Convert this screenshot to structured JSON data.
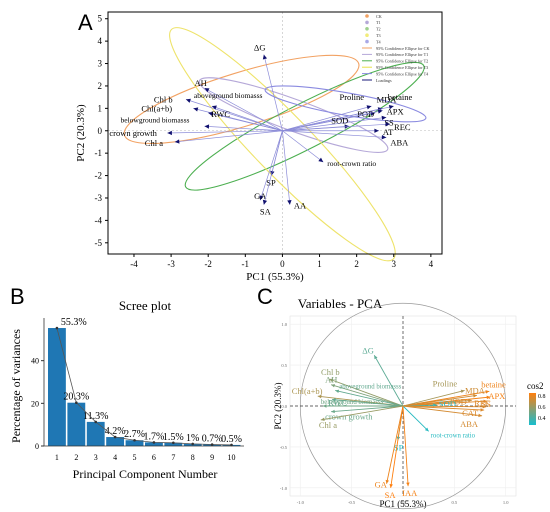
{
  "panels": [
    {
      "letter": "A"
    },
    {
      "letter": "B"
    },
    {
      "letter": "C"
    }
  ],
  "chart_data": [
    {
      "panel": "A",
      "type": "scatter",
      "subtype": "pca-biplot",
      "title": "",
      "xlabel": "PC1 (55.3%)",
      "ylabel": "PC2 (20.3%)",
      "xlim": [
        -4.7,
        4.3
      ],
      "ylim": [
        -5.5,
        5.3
      ],
      "xticks": [
        -4,
        -3,
        -2,
        -1,
        0,
        1,
        2,
        3,
        4
      ],
      "yticks": [
        -5,
        -4,
        -3,
        -2,
        -1,
        0,
        1,
        2,
        3,
        4,
        5
      ],
      "grid": false,
      "legend_position": "top-right",
      "legend": [
        {
          "label": "CK",
          "color": "#f2a263"
        },
        {
          "label": "T1",
          "color": "#b5a8d8"
        },
        {
          "label": "T2",
          "color": "#9fd08f"
        },
        {
          "label": "T3",
          "color": "#f2ec7a"
        },
        {
          "label": "T4",
          "color": "#a9a9e6"
        },
        {
          "label": "95% Confidence Ellipse for CK",
          "color": "#f2a263"
        },
        {
          "label": "95% Confidence Ellipse for T1",
          "color": "#b5a8d8"
        },
        {
          "label": "95% Confidence Ellipse for T2",
          "color": "#4caf50"
        },
        {
          "label": "95% Confidence Ellipse for T3",
          "color": "#e8e04a"
        },
        {
          "label": "95% Confidence Ellipse for T4",
          "color": "#8a8ae0"
        },
        {
          "label": "Loadings",
          "color": "#1a1a7a"
        }
      ],
      "ellipses": [
        {
          "group": "CK",
          "cx": -1.1,
          "cy": 1.4,
          "rx": 3.3,
          "ry": 1.2,
          "angle": -17,
          "color": "#f2a263"
        },
        {
          "group": "T1",
          "cx": 0.3,
          "cy": 0.7,
          "rx": 2.7,
          "ry": 0.7,
          "angle": 20,
          "color": "#b5a8d8"
        },
        {
          "group": "T2",
          "cx": 0.6,
          "cy": 0.2,
          "rx": 3.6,
          "ry": 1.0,
          "angle": -27,
          "color": "#4caf50"
        },
        {
          "group": "T3",
          "cx": 0.0,
          "cy": -0.6,
          "rx": 4.3,
          "ry": 1.3,
          "angle": 46,
          "color": "#eee36a"
        },
        {
          "group": "T4",
          "cx": 1.7,
          "cy": 1.2,
          "rx": 2.2,
          "ry": 0.5,
          "angle": 10,
          "color": "#8a8ae0"
        }
      ],
      "vectors": [
        {
          "label": "ΔG",
          "x": -0.5,
          "y": 3.4
        },
        {
          "label": "AH",
          "x": -2.1,
          "y": 1.9
        },
        {
          "label": "Chl b",
          "x": -2.6,
          "y": 1.4
        },
        {
          "label": "aboveground biomasss",
          "x": -1.9,
          "y": 1.1
        },
        {
          "label": "Chl(a+b)",
          "x": -2.4,
          "y": 1.0
        },
        {
          "label": "RWC",
          "x": -2.0,
          "y": 0.8
        },
        {
          "label": "belowground biomasss",
          "x": -2.1,
          "y": 0.2
        },
        {
          "label": "crown growth",
          "x": -3.1,
          "y": -0.1
        },
        {
          "label": "Chl a",
          "x": -2.9,
          "y": -0.5
        },
        {
          "label": "Proline",
          "x": 2.4,
          "y": 1.1
        },
        {
          "label": "MDA",
          "x": 2.7,
          "y": 1.0
        },
        {
          "label": "betaine",
          "x": 3.0,
          "y": 1.1
        },
        {
          "label": "POD",
          "x": 2.5,
          "y": 0.8
        },
        {
          "label": "APX",
          "x": 2.7,
          "y": 0.9
        },
        {
          "label": "SS",
          "x": 2.8,
          "y": 0.6
        },
        {
          "label": "SOD",
          "x": 1.8,
          "y": 0.2
        },
        {
          "label": "REC",
          "x": 2.9,
          "y": 0.3
        },
        {
          "label": "AT",
          "x": 2.6,
          "y": 0.0
        },
        {
          "label": "ABA",
          "x": 2.8,
          "y": -0.3
        },
        {
          "label": "root-crown ratio",
          "x": 1.1,
          "y": -1.4
        },
        {
          "label": "SP",
          "x": -0.3,
          "y": -2.0
        },
        {
          "label": "GA",
          "x": -0.6,
          "y": -3.1
        },
        {
          "label": "SA",
          "x": -0.5,
          "y": -3.3
        },
        {
          "label": "AA",
          "x": 0.2,
          "y": -3.3
        }
      ]
    },
    {
      "panel": "B",
      "type": "bar",
      "title": "Scree plot",
      "xlabel": "Principal Component Number",
      "ylabel": "Percentage of variances",
      "categories": [
        "1",
        "2",
        "3",
        "4",
        "5",
        "6",
        "7",
        "8",
        "9",
        "10"
      ],
      "values": [
        55.3,
        20.3,
        11.3,
        4.2,
        2.7,
        1.7,
        1.5,
        1.0,
        0.7,
        0.5
      ],
      "data_labels": [
        "55.3%",
        "20.3%",
        "11.3%",
        "4.2%",
        "2.7%",
        "1.7%",
        "1.5%",
        "1%",
        "0.7%",
        "0.5%"
      ],
      "ylim": [
        0,
        60
      ],
      "yticks": [
        0,
        20,
        40
      ],
      "bar_color": "#1f77b4",
      "line": true
    },
    {
      "panel": "C",
      "type": "scatter",
      "subtype": "pca-variables",
      "title": "Variables - PCA",
      "xlabel": "PC1 (55.3%)",
      "ylabel": "PC2 (20.3%)",
      "xlim": [
        -1.1,
        1.1
      ],
      "ylim": [
        -1.1,
        1.1
      ],
      "xticks": [
        "-1.0",
        "-0.5",
        "0.0",
        "0.5",
        "1.0"
      ],
      "yticks": [
        "-1.0",
        "-0.5",
        "0.0",
        "0.5",
        "1.0"
      ],
      "grid": true,
      "legend_position": "right",
      "legend_title": "cos2",
      "legend_ticks": [
        "0.8",
        "0.6",
        "0.4"
      ],
      "color_low": "#17becf",
      "color_high": "#ff7f0e",
      "vectors": [
        {
          "label": "ΔG",
          "x": -0.28,
          "y": 0.62,
          "cos2": 0.46
        },
        {
          "label": "Chl b",
          "x": -0.72,
          "y": 0.33,
          "cos2": 0.62
        },
        {
          "label": "AH",
          "x": -0.7,
          "y": 0.26,
          "cos2": 0.56
        },
        {
          "label": "aboveground biomasss",
          "x": -0.66,
          "y": 0.19,
          "cos2": 0.48
        },
        {
          "label": "Chl(a+b)",
          "x": -0.83,
          "y": 0.12,
          "cos2": 0.7
        },
        {
          "label": "RWC",
          "x": -0.69,
          "y": 0.08,
          "cos2": 0.48
        },
        {
          "label": "belowground biomasss",
          "x": -0.78,
          "y": 0.0,
          "cos2": 0.52
        },
        {
          "label": "crown growth",
          "x": -0.7,
          "y": -0.07,
          "cos2": 0.5
        },
        {
          "label": "Chl a",
          "x": -0.8,
          "y": -0.17,
          "cos2": 0.64
        },
        {
          "label": "Proline",
          "x": 0.6,
          "y": 0.19,
          "cos2": 0.68
        },
        {
          "label": "betaine",
          "x": 0.84,
          "y": 0.18,
          "cos2": 0.9
        },
        {
          "label": "MDA",
          "x": 0.72,
          "y": 0.13,
          "cos2": 0.8
        },
        {
          "label": "APX",
          "x": 0.85,
          "y": 0.11,
          "cos2": 0.92
        },
        {
          "label": "POD",
          "x": 0.67,
          "y": 0.07,
          "cos2": 0.78
        },
        {
          "label": "SS",
          "x": 0.82,
          "y": 0.06,
          "cos2": 0.86
        },
        {
          "label": "SOD",
          "x": 0.33,
          "y": 0.01,
          "cos2": 0.3
        },
        {
          "label": "REC",
          "x": 0.81,
          "y": -0.01,
          "cos2": 0.84
        },
        {
          "label": "CAT",
          "x": 0.79,
          "y": -0.05,
          "cos2": 0.84
        },
        {
          "label": "ABA",
          "x": 0.77,
          "y": -0.12,
          "cos2": 0.82
        },
        {
          "label": "root-crown ratio",
          "x": 0.25,
          "y": -0.31,
          "cos2": 0.3
        },
        {
          "label": "SP",
          "x": -0.05,
          "y": -0.42,
          "cos2": 0.28
        },
        {
          "label": "GA",
          "x": -0.16,
          "y": -0.95,
          "cos2": 0.9
        },
        {
          "label": "SA",
          "x": -0.12,
          "y": -1.0,
          "cos2": 0.96
        },
        {
          "label": "IAA",
          "x": 0.05,
          "y": -0.98,
          "cos2": 0.92
        }
      ]
    }
  ]
}
